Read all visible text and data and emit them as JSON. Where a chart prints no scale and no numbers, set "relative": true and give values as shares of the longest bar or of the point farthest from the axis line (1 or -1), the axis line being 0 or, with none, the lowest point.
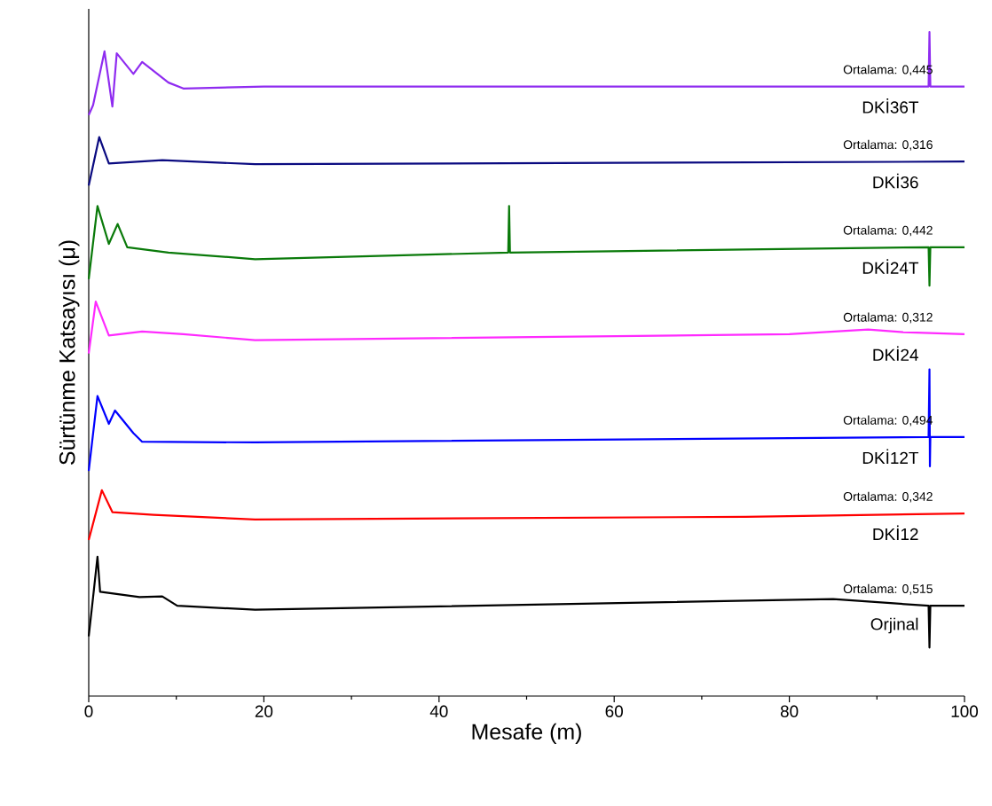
{
  "chart_data": {
    "type": "line",
    "relative": true,
    "xlabel": "Mesafe (m)",
    "ylabel": "Sürtünme Katsayısı (μ)",
    "xlim": [
      0,
      100
    ],
    "xticks": [
      0,
      20,
      40,
      60,
      80,
      100
    ],
    "tick_labels": "x",
    "legend": false,
    "grid": false,
    "marker": "none",
    "line_style": "solid",
    "series": [
      {
        "name": "DKİ36T",
        "color": "#8f2cf0",
        "x": [
          0,
          0.5,
          1.8,
          2.7,
          3.2,
          5.1,
          6.1,
          9.1,
          10.8,
          20,
          95.9,
          96,
          96.1,
          100
        ],
        "values": [
          0.875,
          0.89,
          0.971,
          0.888,
          0.968,
          0.937,
          0.955,
          0.924,
          0.915,
          0.918,
          0.918,
          1.0,
          0.918,
          0.918
        ]
      },
      {
        "name": "DKİ36",
        "color": "#0a0a80",
        "x": [
          0,
          1.2,
          2.3,
          8.4,
          19,
          60,
          100
        ],
        "values": [
          0.769,
          0.842,
          0.802,
          0.807,
          0.801,
          0.803,
          0.805
        ]
      },
      {
        "name": "DKİ24T",
        "color": "#0a7a0a",
        "x": [
          0,
          1.0,
          2.3,
          3.3,
          4.4,
          9.1,
          19,
          47.9,
          48,
          48.1,
          95.9,
          96,
          96.1,
          100
        ],
        "values": [
          0.628,
          0.738,
          0.681,
          0.711,
          0.676,
          0.668,
          0.658,
          0.668,
          0.738,
          0.668,
          0.676,
          0.618,
          0.676,
          0.676
        ]
      },
      {
        "name": "DKİ24",
        "color": "#ff2aff",
        "x": [
          0,
          0.8,
          2.3,
          6.1,
          10.8,
          19,
          80,
          89,
          93,
          100
        ],
        "values": [
          0.516,
          0.594,
          0.543,
          0.549,
          0.545,
          0.536,
          0.545,
          0.552,
          0.548,
          0.545
        ]
      },
      {
        "name": "DKİ12T",
        "color": "#0000ff",
        "x": [
          0,
          1.0,
          2.3,
          3.0,
          5.1,
          6.1,
          19,
          95.9,
          96,
          96.05,
          96.1,
          100
        ],
        "values": [
          0.339,
          0.452,
          0.41,
          0.43,
          0.396,
          0.383,
          0.382,
          0.39,
          0.492,
          0.346,
          0.39,
          0.39
        ]
      },
      {
        "name": "DKİ12",
        "color": "#ff0000",
        "x": [
          0,
          1.5,
          2.7,
          7.4,
          19,
          75,
          100
        ],
        "values": [
          0.235,
          0.31,
          0.277,
          0.273,
          0.266,
          0.27,
          0.275
        ]
      },
      {
        "name": "Orjinal",
        "color": "#000000",
        "x": [
          0,
          0.5,
          1.0,
          1.3,
          5.8,
          8.4,
          10.1,
          19,
          85,
          95.9,
          96,
          96.1,
          100
        ],
        "values": [
          0.09,
          0.149,
          0.21,
          0.157,
          0.149,
          0.15,
          0.136,
          0.13,
          0.146,
          0.136,
          0.073,
          0.136,
          0.136
        ]
      }
    ],
    "annotations": [
      "Ortalama: 0,445",
      "Ortalama: 0,316",
      "Ortalama: 0,442",
      "Ortalama: 0,312",
      "Ortalama: 0,494",
      "Ortalama: 0,342",
      "Ortalama: 0,515"
    ]
  }
}
